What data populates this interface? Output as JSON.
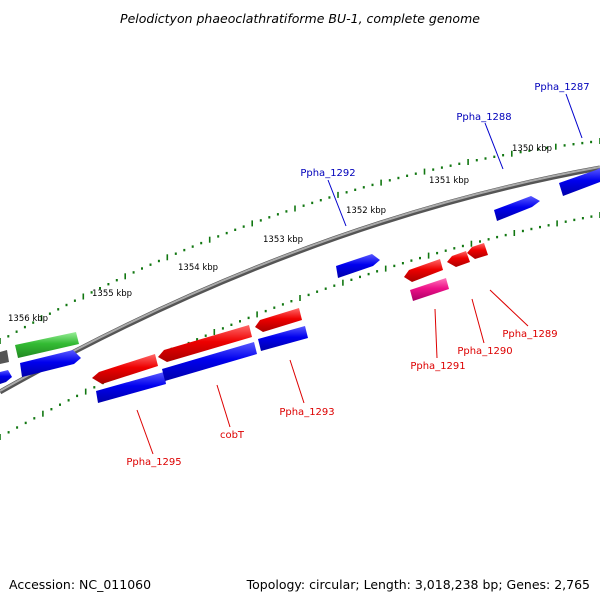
{
  "title": "Pelodictyon phaeoclathratiforme BU-1, complete genome",
  "accession": "Accession: NC_011060",
  "topology": "Topology: circular; Length: 3,018,238 bp; Genes: 2,765",
  "colors": {
    "forward": "#0000ee",
    "reverse": "#dd0000",
    "rna": "#ee1188",
    "other": "#33bb33",
    "backbone": "#888888",
    "tick": "#116611"
  },
  "ruler": {
    "labels": [
      "1350 kbp",
      "1351 kbp",
      "1352 kbp",
      "1353 kbp",
      "1354 kbp",
      "1355 kbp",
      "1356 kbp"
    ]
  },
  "genes": {
    "forward_labels": [
      "Ppha_1287",
      "Ppha_1288",
      "Ppha_1292"
    ],
    "reverse_labels": [
      "Ppha_1289",
      "Ppha_1290",
      "Ppha_1291",
      "Ppha_1293",
      "cobT",
      "Ppha_1295"
    ]
  }
}
